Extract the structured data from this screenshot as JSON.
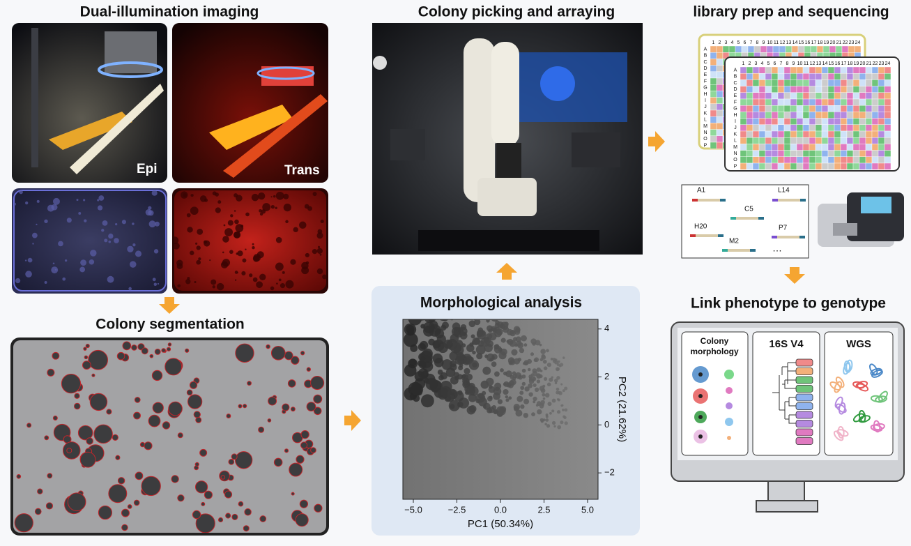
{
  "imaging": {
    "title": "Dual-illumination imaging",
    "epi": "Epi",
    "trans": "Trans"
  },
  "segmentation": {
    "title": "Colony segmentation"
  },
  "picking": {
    "title": "Colony picking and arraying"
  },
  "morphology": {
    "title": "Morphological analysis",
    "xlabel": "PC1 (50.34%)",
    "ylabel": "PC2 (21.62%)",
    "xlim": [
      -5.6,
      5.6
    ],
    "ylim": [
      -3.1,
      4.4
    ],
    "xticks": [
      {
        "value": -5,
        "label": "−5.0"
      },
      {
        "value": -2.5,
        "label": "−2.5"
      },
      {
        "value": 0,
        "label": "0.0"
      },
      {
        "value": 2.5,
        "label": "2.5"
      },
      {
        "value": 5,
        "label": "5.0"
      }
    ],
    "yticks": [
      4,
      2,
      0,
      {
        "value": -2,
        "label": "−2"
      }
    ]
  },
  "library": {
    "title": "library prep and sequencing",
    "plate_columns": [
      "1",
      "2",
      "3",
      "4",
      "5",
      "6",
      "7",
      "8",
      "9",
      "10",
      "11",
      "12",
      "13",
      "14",
      "15",
      "16",
      "17",
      "18",
      "19",
      "20",
      "21",
      "22",
      "23",
      "24"
    ],
    "plate_rows": [
      "A",
      "B",
      "C",
      "D",
      "E",
      "F",
      "G",
      "H",
      "I",
      "J",
      "K",
      "L",
      "M",
      "N",
      "O",
      "P"
    ],
    "reads": [
      "A1",
      "L14",
      "C5",
      "H20",
      "P7",
      "M2",
      "…"
    ]
  },
  "link": {
    "title": "Link phenotype to genotype",
    "colony_morphology": [
      "Colony",
      "morphology"
    ],
    "v4": "16S V4",
    "wgs": "WGS"
  }
}
